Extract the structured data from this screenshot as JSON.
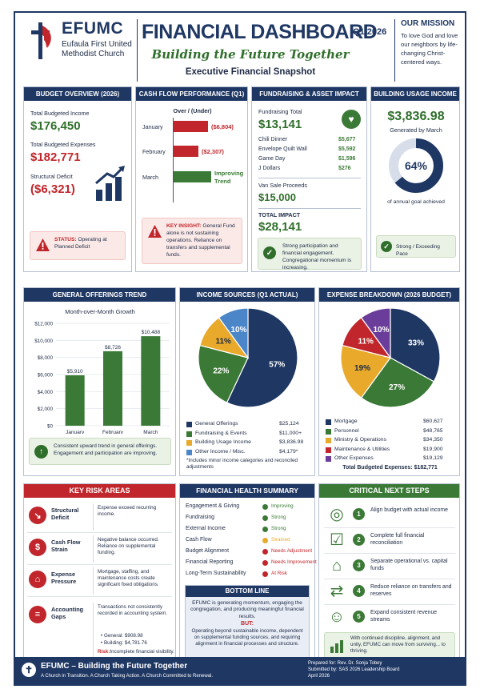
{
  "header": {
    "org_name": "EFUMC",
    "org_sub": "Eufaula First United Methodist Church",
    "title": "FINANCIAL DASHBOARD",
    "quarter": "Q1 2026",
    "tagline": "Building the Future Together",
    "snapshot": "Executive Financial Snapshot",
    "mission_title": "OUR MISSION",
    "mission_text": "To love God and love our neighbors by life-changing Christ-centered ways."
  },
  "budget": {
    "title": "BUDGET OVERVIEW (2026)",
    "income_label": "Total Budgeted Income",
    "income_value": "$176,450",
    "expenses_label": "Total Budgeted Expenses",
    "expenses_value": "$182,771",
    "deficit_label": "Structural Deficit",
    "deficit_value": "($6,321)",
    "status_prefix": "STATUS:",
    "status_text": "Operating at Planned Deficit"
  },
  "cashflow": {
    "title": "CASH FLOW PERFORMANCE (Q1)",
    "subtitle": "Over / (Under)",
    "rows": [
      {
        "month": "January",
        "value": "($6,804)",
        "amount": -6804
      },
      {
        "month": "February",
        "value": "($2,307)",
        "amount": -2307
      },
      {
        "month": "March",
        "value": "Improving Trend",
        "amount": 0
      }
    ],
    "insight_prefix": "KEY INSIGHT:",
    "insight_text": "General Fund alone is not sustaining operations. Reliance on transfers and supplemental funds."
  },
  "fundraising": {
    "title": "FUNDRAISING & ASSET IMPACT",
    "total_label": "Fundraising Total",
    "total_value": "$13,141",
    "items": [
      {
        "name": "Chili Dinner",
        "value": "$5,677"
      },
      {
        "name": "Envelope Quilt Wall",
        "value": "$5,592"
      },
      {
        "name": "Game Day",
        "value": "$1,596"
      },
      {
        "name": "J Dollars",
        "value": "$276"
      }
    ],
    "van_label": "Van Sale Proceeds",
    "van_value": "$15,000",
    "impact_label": "TOTAL IMPACT",
    "impact_value": "$28,141",
    "note": "Strong participation and financial engagement. Congregational momentum is increasing."
  },
  "building": {
    "title": "BUILDING USAGE INCOME",
    "value": "$3,836.98",
    "sub": "Generated by March",
    "percent_label": "64%",
    "percent": 64,
    "caption": "of annual goal achieved",
    "status": "Strong / Exceeding Pace"
  },
  "offerings": {
    "title": "GENERAL OFFERINGS TREND",
    "note": "Consistent upward trend in general offerings. Engagement and participation are improving."
  },
  "income_sources": {
    "title": "INCOME SOURCES (Q1 ACTUAL)",
    "legend": [
      {
        "name": "General Offerings",
        "value": "$25,124",
        "color": "#1f3763"
      },
      {
        "name": "Fundraising & Events",
        "value": "$11,000+",
        "color": "#3b7a36"
      },
      {
        "name": "Building Usage Income",
        "value": "$3,836.98",
        "color": "#e9a92b"
      },
      {
        "name": "Other Income / Misc.",
        "value": "$4,179*",
        "color": "#4a86c8"
      }
    ],
    "footnote": "*Includes minor income categories and reconciled adjustments"
  },
  "expense_breakdown": {
    "title": "EXPENSE BREAKDOWN (2026 BUDGET)",
    "legend": [
      {
        "name": "Mortgage",
        "value": "$60,627",
        "color": "#1f3763"
      },
      {
        "name": "Personnel",
        "value": "$48,765",
        "color": "#3b7a36"
      },
      {
        "name": "Ministry & Operations",
        "value": "$34,350",
        "color": "#e9a92b"
      },
      {
        "name": "Maintenance & Utilities",
        "value": "$19,900",
        "color": "#c0262b"
      },
      {
        "name": "Other Expenses",
        "value": "$19,129",
        "color": "#6a3d9a"
      }
    ],
    "total": "Total Budgeted Expenses: $182,771"
  },
  "chart_data": [
    {
      "type": "bar",
      "title": "Month-over-Month Growth",
      "categories": [
        "January",
        "February",
        "March"
      ],
      "values": [
        5910,
        8726,
        10488
      ],
      "value_labels": [
        "$5,910",
        "$8,726",
        "$10,488"
      ],
      "yticks": [
        "$12,000",
        "$10,000",
        "$8,000",
        "$6,000",
        "$4,000",
        "$2,000",
        "$0"
      ],
      "ylim": [
        0,
        12000
      ],
      "color": "#3b7a36"
    },
    {
      "type": "pie",
      "categories": [
        "General Offerings",
        "Fundraising & Events",
        "Building Usage Income",
        "Other Income / Misc."
      ],
      "values": [
        57,
        22,
        11,
        10
      ],
      "labels": [
        "57%",
        "22%",
        "11%",
        "10%"
      ],
      "colors": [
        "#1f3763",
        "#3b7a36",
        "#e9a92b",
        "#4a86c8"
      ]
    },
    {
      "type": "pie",
      "categories": [
        "Mortgage",
        "Personnel",
        "Ministry & Operations",
        "Maintenance & Utilities",
        "Other Expenses"
      ],
      "values": [
        33,
        27,
        19,
        11,
        10
      ],
      "labels": [
        "33%",
        "27%",
        "19%",
        "11%",
        "10%"
      ],
      "colors": [
        "#1f3763",
        "#3b7a36",
        "#e9a92b",
        "#c0262b",
        "#6a3d9a"
      ]
    }
  ],
  "risks": {
    "title": "KEY RISK AREAS",
    "items": [
      {
        "name": "Structural Deficit",
        "desc": "Expense exceed recurring income.",
        "icon": "chart-down-icon"
      },
      {
        "name": "Cash Flow Strain",
        "desc": "Negative balance occurred. Reliance on supplemental funding.",
        "icon": "dollar-icon"
      },
      {
        "name": "Expense Pressure",
        "desc": "Mortgage, staffing, and maintenance costs create significant fixed obligations.",
        "icon": "building-icon"
      },
      {
        "name": "Accounting Gaps",
        "desc": "Transactions not consistently recorded in accounting system.",
        "icon": "document-icon"
      }
    ],
    "gap_general": "• General:  $908.98",
    "gap_building": "• Building:  $4,781.76",
    "risk_prefix": "Risk:",
    "risk_text": "Incomplete financial visibility."
  },
  "health": {
    "title": "FINANCIAL HEALTH SUMMARY",
    "rows": [
      {
        "name": "Engagement & Giving",
        "status": "Improving",
        "color": "#3b7a36"
      },
      {
        "name": "Fundraising",
        "status": "Strong",
        "color": "#3b7a36"
      },
      {
        "name": "External Income",
        "status": "Strong",
        "color": "#3b7a36"
      },
      {
        "name": "Cash Flow",
        "status": "Strained",
        "color": "#e9a92b"
      },
      {
        "name": "Budget Alignment",
        "status": "Needs Adjustment",
        "color": "#c0262b"
      },
      {
        "name": "Financial Reporting",
        "status": "Needs Improvement",
        "color": "#c0262b"
      },
      {
        "name": "Long-Term Sustainability",
        "status": "At Risk",
        "color": "#c0262b"
      }
    ],
    "bottom_title": "BOTTOM LINE",
    "bottom_text1": "EFUMC is generating momentum, engaging the congregation, and producing meaningful financial results.",
    "bottom_but": "BUT:",
    "bottom_text2": "Operating beyond sustainable income, dependent on supplemental funding sources, and requiring alignment in financial processes and structure."
  },
  "steps": {
    "title": "CRITICAL NEXT STEPS",
    "items": [
      {
        "num": "1",
        "text": "Align budget with actual income",
        "icon": "target-icon"
      },
      {
        "num": "2",
        "text": "Complete full financial reconciliation",
        "icon": "checklist-icon"
      },
      {
        "num": "3",
        "text": "Separate operational vs. capital funds",
        "icon": "bank-icon"
      },
      {
        "num": "4",
        "text": "Reduce reliance on transfers and reserves",
        "icon": "arrows-icon"
      },
      {
        "num": "5",
        "text": "Expand consistent revenue streams",
        "icon": "people-icon"
      }
    ],
    "closing": "With continued discipline, alignment, and unity, EFUMC can move from surviving... to thriving."
  },
  "footer": {
    "title": "EFUMC – Building the Future Together",
    "sub": "A Church in Transition. A Church Taking Action. A Church Committed to Renewal.",
    "prepared": "Prepared for: Rev. Dr. Sonja Tobey",
    "submitted": "Submitted by: SAS 2026 Leadership Board",
    "date": "April 2026"
  }
}
